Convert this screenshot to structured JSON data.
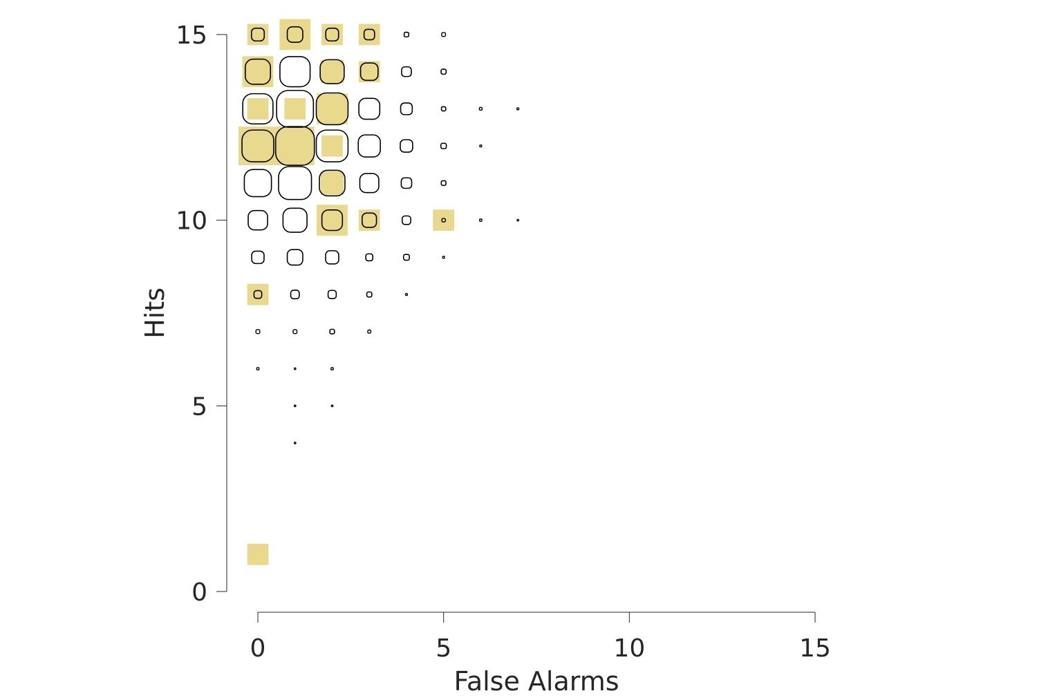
{
  "chart_data": {
    "type": "scatter",
    "xlabel": "False Alarms",
    "ylabel": "Hits",
    "xlim": [
      0,
      15
    ],
    "ylim": [
      0,
      15
    ],
    "xticks": [
      0,
      5,
      10,
      15
    ],
    "yticks": [
      0,
      5,
      10,
      15
    ],
    "square_color": "#e8d98c",
    "outline_color": "#000000",
    "series": [
      {
        "marker": "square",
        "points": [
          {
            "x": 0,
            "y": 15,
            "size": 0.55
          },
          {
            "x": 1,
            "y": 15,
            "size": 0.8
          },
          {
            "x": 2,
            "y": 15,
            "size": 0.55
          },
          {
            "x": 3,
            "y": 15,
            "size": 0.55
          },
          {
            "x": 0,
            "y": 14,
            "size": 0.8
          },
          {
            "x": 2,
            "y": 14,
            "size": 0.6
          },
          {
            "x": 3,
            "y": 14,
            "size": 0.55
          },
          {
            "x": 0,
            "y": 13,
            "size": 0.55
          },
          {
            "x": 1,
            "y": 13,
            "size": 0.55
          },
          {
            "x": 2,
            "y": 13,
            "size": 0.8
          },
          {
            "x": 0,
            "y": 12,
            "size": 1.0
          },
          {
            "x": 1,
            "y": 12,
            "size": 1.0
          },
          {
            "x": 2,
            "y": 12,
            "size": 0.55
          },
          {
            "x": 2,
            "y": 11,
            "size": 0.6
          },
          {
            "x": 2,
            "y": 10,
            "size": 0.8
          },
          {
            "x": 3,
            "y": 10,
            "size": 0.55
          },
          {
            "x": 5,
            "y": 10,
            "size": 0.55
          },
          {
            "x": 0,
            "y": 8,
            "size": 0.55
          },
          {
            "x": 0,
            "y": 1,
            "size": 0.55
          }
        ]
      },
      {
        "marker": "rounded-outline",
        "points": [
          {
            "x": 0,
            "y": 15,
            "size": 0.33
          },
          {
            "x": 1,
            "y": 15,
            "size": 0.4
          },
          {
            "x": 2,
            "y": 15,
            "size": 0.33
          },
          {
            "x": 3,
            "y": 15,
            "size": 0.27
          },
          {
            "x": 4,
            "y": 15,
            "size": 0.12
          },
          {
            "x": 5,
            "y": 15,
            "size": 0.1
          },
          {
            "x": 0,
            "y": 14,
            "size": 0.65
          },
          {
            "x": 1,
            "y": 14,
            "size": 0.78
          },
          {
            "x": 2,
            "y": 14,
            "size": 0.62
          },
          {
            "x": 3,
            "y": 14,
            "size": 0.45
          },
          {
            "x": 4,
            "y": 14,
            "size": 0.25
          },
          {
            "x": 5,
            "y": 14,
            "size": 0.13
          },
          {
            "x": 0,
            "y": 13,
            "size": 0.78
          },
          {
            "x": 1,
            "y": 13,
            "size": 0.95
          },
          {
            "x": 2,
            "y": 13,
            "size": 0.82
          },
          {
            "x": 3,
            "y": 13,
            "size": 0.54
          },
          {
            "x": 4,
            "y": 13,
            "size": 0.3
          },
          {
            "x": 5,
            "y": 13,
            "size": 0.11
          },
          {
            "x": 6,
            "y": 13,
            "size": 0.07
          },
          {
            "x": 7,
            "y": 13,
            "size": 0.05
          },
          {
            "x": 0,
            "y": 12,
            "size": 0.82
          },
          {
            "x": 1,
            "y": 12,
            "size": 1.0
          },
          {
            "x": 2,
            "y": 12,
            "size": 0.82
          },
          {
            "x": 3,
            "y": 12,
            "size": 0.57
          },
          {
            "x": 4,
            "y": 12,
            "size": 0.32
          },
          {
            "x": 5,
            "y": 12,
            "size": 0.14
          },
          {
            "x": 6,
            "y": 12,
            "size": 0.05
          },
          {
            "x": 0,
            "y": 11,
            "size": 0.7
          },
          {
            "x": 1,
            "y": 11,
            "size": 0.85
          },
          {
            "x": 2,
            "y": 11,
            "size": 0.66
          },
          {
            "x": 3,
            "y": 11,
            "size": 0.49
          },
          {
            "x": 4,
            "y": 11,
            "size": 0.27
          },
          {
            "x": 5,
            "y": 11,
            "size": 0.12
          },
          {
            "x": 0,
            "y": 10,
            "size": 0.5
          },
          {
            "x": 1,
            "y": 10,
            "size": 0.62
          },
          {
            "x": 2,
            "y": 10,
            "size": 0.53
          },
          {
            "x": 3,
            "y": 10,
            "size": 0.37
          },
          {
            "x": 4,
            "y": 10,
            "size": 0.22
          },
          {
            "x": 5,
            "y": 10,
            "size": 0.09
          },
          {
            "x": 6,
            "y": 10,
            "size": 0.06
          },
          {
            "x": 7,
            "y": 10,
            "size": 0.04
          },
          {
            "x": 0,
            "y": 9,
            "size": 0.32
          },
          {
            "x": 1,
            "y": 9,
            "size": 0.4
          },
          {
            "x": 2,
            "y": 9,
            "size": 0.34
          },
          {
            "x": 3,
            "y": 9,
            "size": 0.18
          },
          {
            "x": 4,
            "y": 9,
            "size": 0.15
          },
          {
            "x": 5,
            "y": 9,
            "size": 0.05
          },
          {
            "x": 0,
            "y": 8,
            "size": 0.2
          },
          {
            "x": 1,
            "y": 8,
            "size": 0.22
          },
          {
            "x": 2,
            "y": 8,
            "size": 0.21
          },
          {
            "x": 3,
            "y": 8,
            "size": 0.13
          },
          {
            "x": 4,
            "y": 8,
            "size": 0.05
          },
          {
            "x": 0,
            "y": 7,
            "size": 0.1
          },
          {
            "x": 1,
            "y": 7,
            "size": 0.1
          },
          {
            "x": 2,
            "y": 7,
            "size": 0.12
          },
          {
            "x": 3,
            "y": 7,
            "size": 0.08
          },
          {
            "x": 0,
            "y": 6,
            "size": 0.06
          },
          {
            "x": 1,
            "y": 6,
            "size": 0.04
          },
          {
            "x": 2,
            "y": 6,
            "size": 0.06
          },
          {
            "x": 1,
            "y": 5,
            "size": 0.04
          },
          {
            "x": 2,
            "y": 5,
            "size": 0.04
          },
          {
            "x": 1,
            "y": 4,
            "size": 0.04
          }
        ]
      }
    ]
  }
}
